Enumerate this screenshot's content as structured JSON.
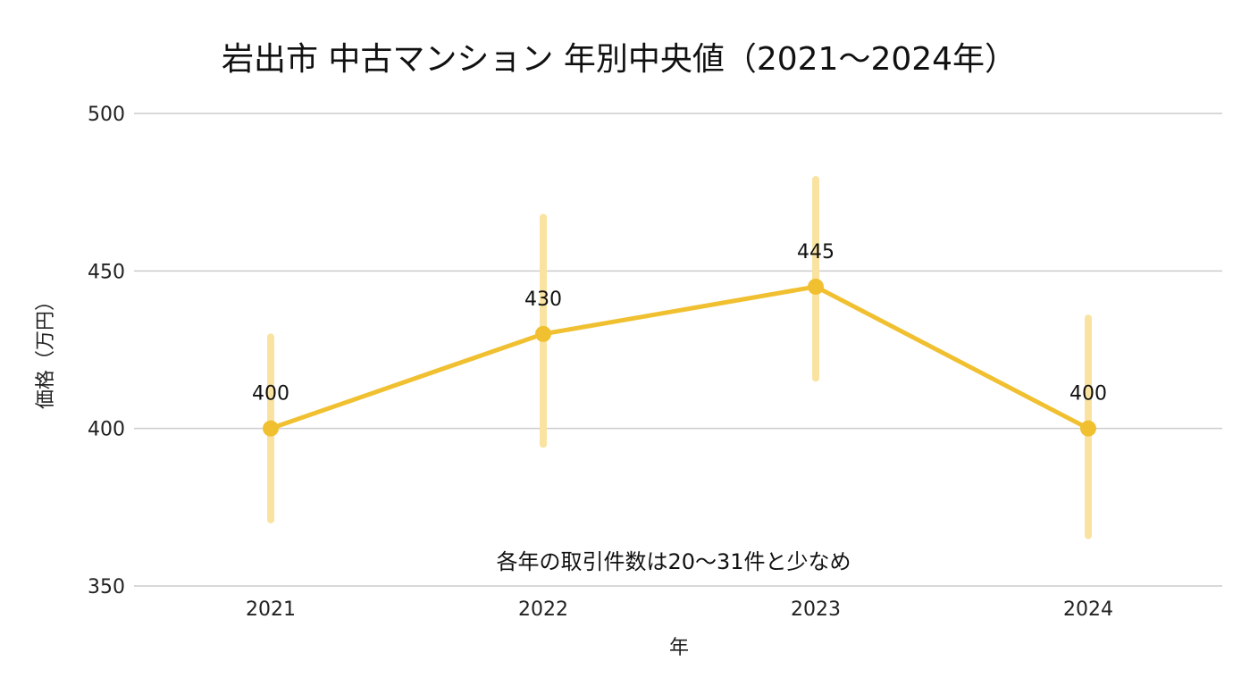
{
  "chart_data": {
    "type": "line",
    "title": "岩出市 中古マンション 年別中央値（2021〜2024年）",
    "xlabel": "年",
    "ylabel": "価格（万円）",
    "categories": [
      "2021",
      "2022",
      "2023",
      "2024"
    ],
    "ylim": [
      350,
      500
    ],
    "yticks": [
      350,
      400,
      450,
      500
    ],
    "series": [
      {
        "values": [
          400,
          430,
          445,
          400
        ],
        "data_labels": [
          "400",
          "430",
          "445",
          "400"
        ],
        "error_bars": [
          [
            371,
            429
          ],
          [
            395,
            467
          ],
          [
            416,
            479
          ],
          [
            366,
            435
          ]
        ]
      }
    ],
    "annotation": "各年の取引件数は20〜31件と少なめ",
    "grid": true,
    "legend": "none",
    "colors": {
      "line": "#F0C030",
      "error_bar": "#FAE3A0",
      "grid": "#CCCCCC"
    }
  }
}
